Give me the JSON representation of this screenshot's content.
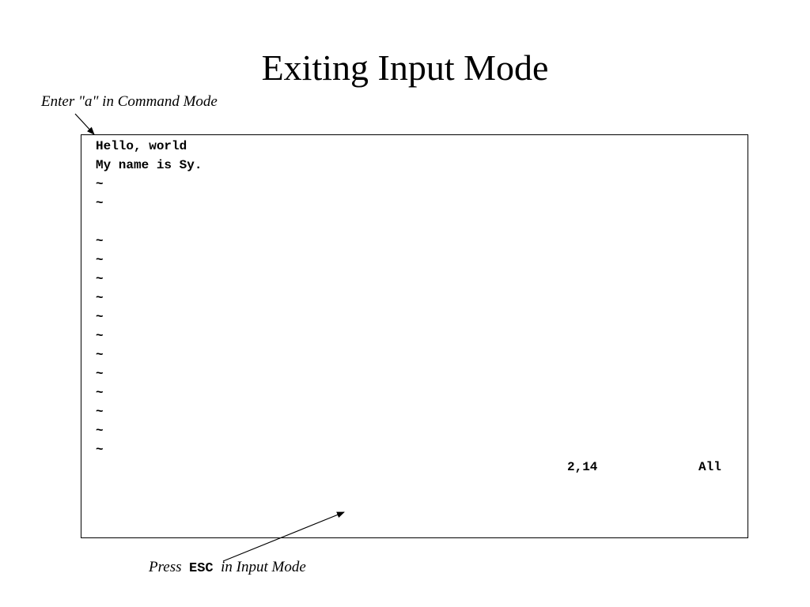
{
  "slide": {
    "title": "Exiting Input Mode"
  },
  "annotations": {
    "top": "Enter \"a\" in Command Mode",
    "bottom_prefix": "Press",
    "bottom_key": "ESC",
    "bottom_suffix": "in Input Mode"
  },
  "editor": {
    "lines": [
      "Hello, world",
      "My name is Sy.",
      "~",
      "~",
      "",
      "~",
      "~",
      "~",
      "~",
      "~",
      "~",
      "~",
      "~",
      "~",
      "~",
      "~",
      "~"
    ],
    "status_position": "2,14",
    "status_view": "All"
  }
}
